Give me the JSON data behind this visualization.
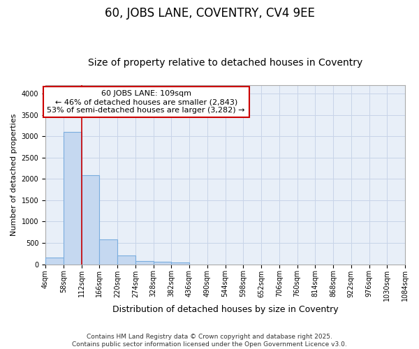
{
  "title": "60, JOBS LANE, COVENTRY, CV4 9EE",
  "subtitle": "Size of property relative to detached houses in Coventry",
  "xlabel": "Distribution of detached houses by size in Coventry",
  "ylabel": "Number of detached properties",
  "bin_edges": [
    4,
    58,
    112,
    166,
    220,
    274,
    328,
    382,
    436,
    490,
    544,
    598,
    652,
    706,
    760,
    814,
    868,
    922,
    976,
    1030,
    1084
  ],
  "bar_heights": [
    150,
    3100,
    2080,
    580,
    210,
    75,
    55,
    40,
    0,
    0,
    0,
    0,
    0,
    0,
    0,
    0,
    0,
    0,
    0,
    0
  ],
  "bar_color": "#c5d8f0",
  "bar_edge_color": "#7aadde",
  "bar_alpha": 1.0,
  "vline_x": 112,
  "vline_color": "#cc0000",
  "annotation_text": "60 JOBS LANE: 109sqm\n← 46% of detached houses are smaller (2,843)\n53% of semi-detached houses are larger (3,282) →",
  "annotation_box_color": "white",
  "annotation_box_edge_color": "#cc0000",
  "ylim": [
    0,
    4200
  ],
  "yticks": [
    0,
    500,
    1000,
    1500,
    2000,
    2500,
    3000,
    3500,
    4000
  ],
  "grid_color": "#c8d4e8",
  "fig_background_color": "#ffffff",
  "plot_background": "#e8eff8",
  "footer_text": "Contains HM Land Registry data © Crown copyright and database right 2025.\nContains public sector information licensed under the Open Government Licence v3.0.",
  "title_fontsize": 12,
  "subtitle_fontsize": 10,
  "xlabel_fontsize": 9,
  "ylabel_fontsize": 8,
  "tick_fontsize": 7,
  "annotation_fontsize": 8,
  "footer_fontsize": 6.5
}
